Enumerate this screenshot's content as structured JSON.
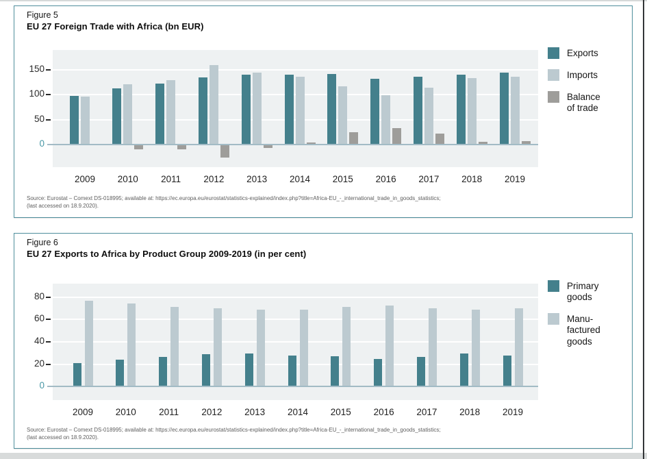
{
  "colors": {
    "teal": "#44808c",
    "light_blue_gray": "#bccad0",
    "gray": "#9e9d9a",
    "plot_background": "#eef1f2",
    "zero_line": "#a2bbc5",
    "card_border": "#4e8e9c",
    "zero_tick_label": "#4a98a6",
    "tick_label": "#2b2b2b"
  },
  "figure5": {
    "label": "Figure 5",
    "title": "EU 27 Foreign Trade with Africa (bn EUR)",
    "legend_items": [
      {
        "name": "Exports",
        "display": "Exports",
        "color": "#44808c"
      },
      {
        "name": "Imports",
        "display": "Imports",
        "color": "#bccad0"
      },
      {
        "name": "Balance of trade",
        "display": "Balance\nof trade",
        "color": "#9e9d9a"
      }
    ],
    "source_line1": "Source: Eurostat – Comext DS-018995; available at: https://ec.europa.eu/eurostat/statistics-explained/index.php?title=Africa-EU_-_international_trade_in_goods_statistics;",
    "source_line2": "(last accessed on 18.9.2020)."
  },
  "figure6": {
    "label": "Figure 6",
    "title": "EU 27 Exports to Africa by Product Group 2009-2019 (in per cent)",
    "legend_items": [
      {
        "name": "Primary goods",
        "display": "Primary\ngoods",
        "color": "#44808c"
      },
      {
        "name": "Manufactured goods",
        "display": "Manu-\nfactured\ngoods",
        "color": "#bccad0"
      }
    ],
    "source_line1": "Source: Eurostat – Comext DS-018995; available at: https://ec.europa.eu/eurostat/statistics-explained/index.php?title=Africa-EU_-_international_trade_in_goods_statistics;",
    "source_line2": "(last accessed on 18.9.2020)."
  },
  "chart_data": [
    {
      "id": "figure5",
      "type": "bar",
      "title": "EU 27 Foreign Trade with Africa (bn EUR)",
      "categories": [
        "2009",
        "2010",
        "2011",
        "2012",
        "2013",
        "2014",
        "2015",
        "2016",
        "2017",
        "2018",
        "2019"
      ],
      "series": [
        {
          "name": "Exports",
          "color": "#44808c",
          "values": [
            98,
            113,
            122,
            135,
            140,
            141,
            142,
            132,
            137,
            140,
            144
          ]
        },
        {
          "name": "Imports",
          "color": "#bccad0",
          "values": [
            96,
            121,
            130,
            160,
            145,
            137,
            117,
            99,
            115,
            134,
            137
          ]
        },
        {
          "name": "Balance of trade",
          "color": "#9e9d9a",
          "values": [
            2,
            -8,
            -8,
            -25,
            -5,
            4,
            25,
            33,
            22,
            6,
            7
          ]
        }
      ],
      "yticks": [
        0,
        50,
        100,
        150
      ],
      "ylim": [
        -45,
        190
      ],
      "grid": true,
      "legend_position": "right",
      "xlabel": "",
      "ylabel": ""
    },
    {
      "id": "figure6",
      "type": "bar",
      "title": "EU 27 Exports to Africa by Product Group 2009-2019 (in per cent)",
      "categories": [
        "2009",
        "2010",
        "2011",
        "2012",
        "2013",
        "2014",
        "2015",
        "2016",
        "2017",
        "2018",
        "2019"
      ],
      "series": [
        {
          "name": "Primary goods",
          "color": "#44808c",
          "values": [
            21,
            24,
            26.5,
            29,
            29.5,
            28,
            27,
            24.5,
            26.5,
            29.5,
            28
          ]
        },
        {
          "name": "Manufactured goods",
          "color": "#bccad0",
          "values": [
            77,
            74,
            71,
            70,
            69,
            69,
            71,
            72.5,
            70,
            68.5,
            70
          ]
        }
      ],
      "yticks": [
        0,
        20,
        40,
        60,
        80
      ],
      "ylim": [
        -12,
        92
      ],
      "grid": true,
      "legend_position": "right",
      "xlabel": "",
      "ylabel": ""
    }
  ]
}
